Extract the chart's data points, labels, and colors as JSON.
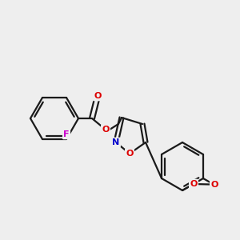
{
  "bg_color": "#eeeeee",
  "bond_color": "#1a1a1a",
  "atom_colors": {
    "O": "#dd0000",
    "N": "#0000cc",
    "F": "#cc00cc",
    "C": "#1a1a1a"
  },
  "figsize": [
    3.0,
    3.0
  ],
  "dpi": 100
}
